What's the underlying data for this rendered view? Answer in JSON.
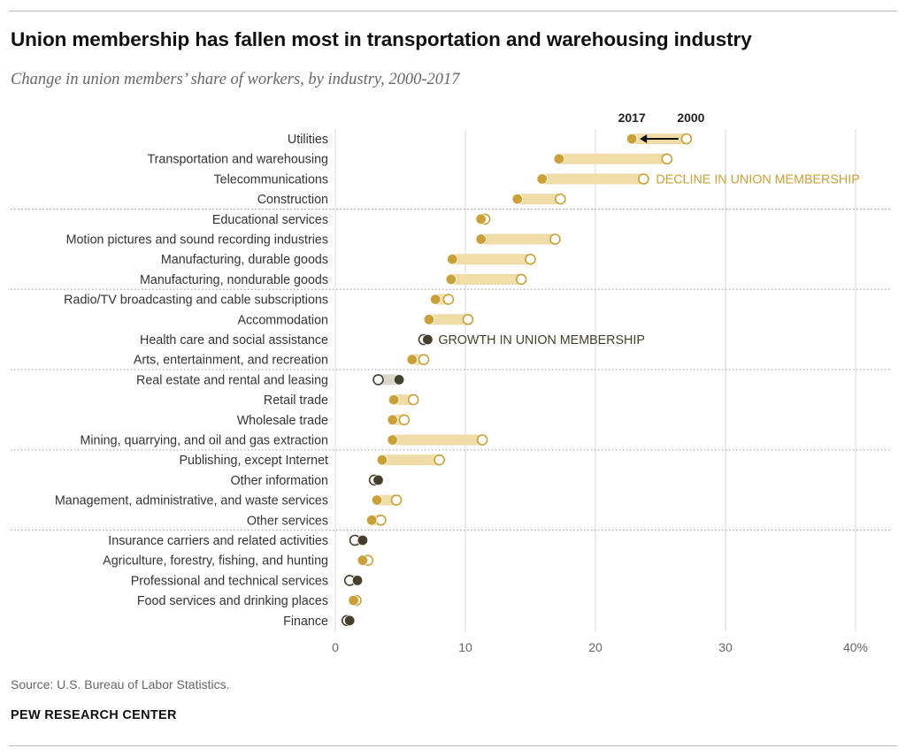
{
  "title": "Union membership has fallen most in transportation and warehousing industry",
  "subtitle": "Change in union members’ share of workers, by industry, 2000-2017",
  "source": "Source: U.S. Bureau of Labor Statistics.",
  "brand": "PEW RESEARCH CENTER",
  "colors": {
    "decline": "#c9a136",
    "decline_bar": "#efdca6",
    "growth": "#45402b",
    "growth_bar": "#d9d6ca",
    "grid": "#d9d9d9",
    "divider": "#9a9a9a",
    "label": "#333333"
  },
  "chart_data": {
    "type": "dot-range",
    "xlim": [
      0,
      40
    ],
    "x_ticks": [
      0,
      10,
      20,
      30,
      40
    ],
    "x_tick_labels": [
      "0",
      "10",
      "20",
      "30",
      "40%"
    ],
    "legend": {
      "label_2017": "2017",
      "label_2000": "2000",
      "decline_label": "DECLINE IN UNION MEMBERSHIP",
      "growth_label": "GROWTH IN UNION MEMBERSHIP"
    },
    "groups_after_index": [
      3,
      7,
      11,
      15,
      19
    ],
    "rows": [
      {
        "industry": "Utilities",
        "y2000": 27.0,
        "y2017": 22.8
      },
      {
        "industry": "Transportation and warehousing",
        "y2000": 25.5,
        "y2017": 17.2
      },
      {
        "industry": "Telecommunications",
        "y2000": 23.7,
        "y2017": 15.9
      },
      {
        "industry": "Construction",
        "y2000": 17.3,
        "y2017": 14.0
      },
      {
        "industry": "Educational services",
        "y2000": 11.5,
        "y2017": 11.2
      },
      {
        "industry": "Motion pictures and sound recording industries",
        "y2000": 16.9,
        "y2017": 11.2
      },
      {
        "industry": "Manufacturing, durable goods",
        "y2000": 15.0,
        "y2017": 9.0
      },
      {
        "industry": "Manufacturing, nondurable goods",
        "y2000": 14.3,
        "y2017": 8.9
      },
      {
        "industry": "Radio/TV broadcasting and cable subscriptions",
        "y2000": 8.7,
        "y2017": 7.7
      },
      {
        "industry": "Accommodation",
        "y2000": 10.2,
        "y2017": 7.2
      },
      {
        "industry": "Health care and social assistance",
        "y2000": 6.8,
        "y2017": 7.1
      },
      {
        "industry": "Arts, entertainment, and recreation",
        "y2000": 6.8,
        "y2017": 5.9
      },
      {
        "industry": "Real estate and rental and leasing",
        "y2000": 3.3,
        "y2017": 4.9
      },
      {
        "industry": "Retail trade",
        "y2000": 6.0,
        "y2017": 4.5
      },
      {
        "industry": "Wholesale trade",
        "y2000": 5.3,
        "y2017": 4.4
      },
      {
        "industry": "Mining, quarrying, and oil and gas extraction",
        "y2000": 11.3,
        "y2017": 4.4
      },
      {
        "industry": "Publishing, except Internet",
        "y2000": 8.0,
        "y2017": 3.6
      },
      {
        "industry": "Other information",
        "y2000": 3.0,
        "y2017": 3.3
      },
      {
        "industry": "Management, administrative, and waste services",
        "y2000": 4.7,
        "y2017": 3.2
      },
      {
        "industry": "Other services",
        "y2000": 3.5,
        "y2017": 2.8
      },
      {
        "industry": "Insurance carriers and related activities",
        "y2000": 1.5,
        "y2017": 2.1
      },
      {
        "industry": "Agriculture, forestry, fishing, and hunting",
        "y2000": 2.5,
        "y2017": 2.1
      },
      {
        "industry": "Professional and technical services",
        "y2000": 1.1,
        "y2017": 1.7
      },
      {
        "industry": "Food services and drinking places",
        "y2000": 1.6,
        "y2017": 1.4
      },
      {
        "industry": "Finance",
        "y2000": 0.9,
        "y2017": 1.1
      }
    ]
  }
}
